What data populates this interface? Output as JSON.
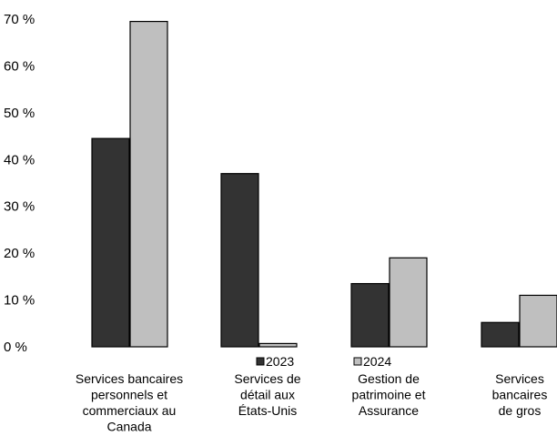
{
  "chart_data": {
    "type": "bar",
    "categories": [
      [
        "Services bancaires",
        "personnels et",
        "commerciaux au",
        "Canada"
      ],
      [
        "Services de",
        "détail aux",
        "États-Unis"
      ],
      [
        "Gestion de",
        "patrimoine et",
        "Assurance"
      ],
      [
        "Services",
        "bancaires",
        "de gros"
      ]
    ],
    "series": [
      {
        "name": "2023",
        "values": [
          44.5,
          37,
          13.5,
          5.2
        ],
        "color": "#333333"
      },
      {
        "name": "2024",
        "values": [
          69.5,
          0.7,
          19,
          11
        ],
        "color": "#bfbfbf"
      }
    ],
    "ylim": [
      0,
      70
    ],
    "yticks": [
      "0 %",
      "10 %",
      "20 %",
      "30 %",
      "40 %",
      "50 %",
      "60 %",
      "70 %"
    ],
    "grid": false,
    "legend": "center, between bars and category labels"
  }
}
